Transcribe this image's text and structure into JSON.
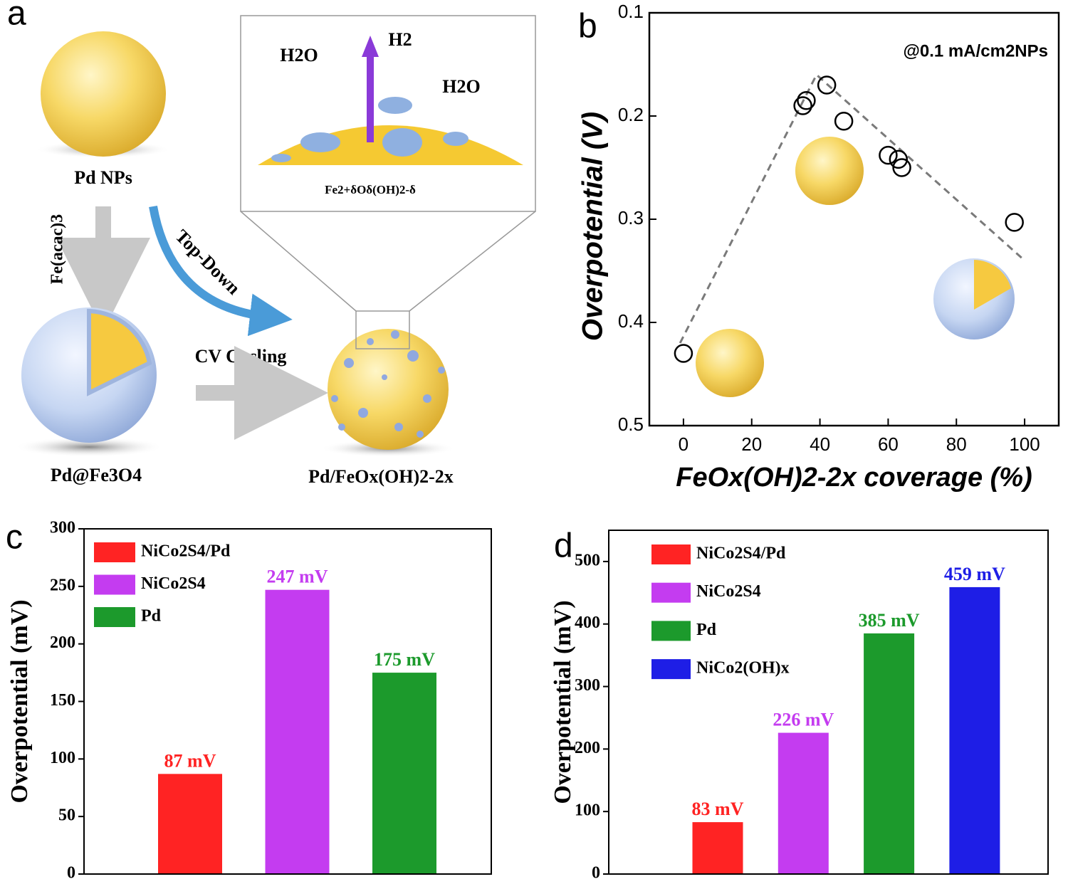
{
  "panel_labels": [
    "a",
    "b",
    "c",
    "d"
  ],
  "diagram": {
    "pd_nps": "Pd NPs",
    "fe_acac": "Fe(acac)3",
    "pd_fe3o4": "Pd@Fe3O4",
    "top_down": "Top-Down",
    "cv_cycling": "CV Cycling",
    "pd_feox": "Pd/FeOx(OH)2-2x",
    "h2o_left": "H2O",
    "h2": "H2",
    "h2o_right": "H2O",
    "fe_species": "Fe2+δOδ(OH)2-δ"
  },
  "chart_data": [
    {
      "type": "scatter",
      "annotation": "@0.1 mA/cm2NPs",
      "x_label": "FeOx(OH)2-2x coverage (%)",
      "y_label": "Overpotential (V)",
      "x": [
        0,
        35,
        36,
        42,
        47,
        60,
        63,
        64,
        97
      ],
      "values": [
        0.43,
        0.19,
        0.185,
        0.17,
        0.205,
        0.238,
        0.242,
        0.25,
        0.303
      ],
      "trend": {
        "x": [
          -1,
          39,
          100
        ],
        "values": [
          0.42,
          0.16,
          0.34
        ],
        "color": "#7a7a7a"
      },
      "color": "#000000",
      "xlim": [
        -10,
        110
      ],
      "xticks": [
        0,
        20,
        40,
        60,
        80,
        100
      ],
      "ylim": [
        0.1,
        0.5
      ],
      "y_inverted": true,
      "yticks": [
        0.1,
        0.2,
        0.3,
        0.4,
        0.5
      ]
    },
    {
      "type": "bar",
      "y_label": "Overpotential (mV)",
      "categories": [
        "NiCo2S4/Pd",
        "NiCo2S4",
        "Pd"
      ],
      "values": [
        87,
        247,
        175
      ],
      "value_labels": [
        "87 mV",
        "247 mV",
        "175 mV"
      ],
      "colors": [
        "#ff2323",
        "#c43cf0",
        "#1c9a2c"
      ],
      "ylim": [
        0,
        300
      ],
      "yticks": [
        0,
        50,
        100,
        150,
        200,
        250,
        300
      ]
    },
    {
      "type": "bar",
      "y_label": "Overpotential (mV)",
      "categories": [
        "NiCo2S4/Pd",
        "NiCo2S4",
        "Pd",
        "NiCo2(OH)x"
      ],
      "values": [
        83,
        226,
        385,
        459
      ],
      "value_labels": [
        "83 mV",
        "226 mV",
        "385 mV",
        "459 mV"
      ],
      "colors": [
        "#ff2323",
        "#c43cf0",
        "#1c9a2c",
        "#1e1ee6"
      ],
      "ylim": [
        0,
        550
      ],
      "yticks": [
        0,
        100,
        200,
        300,
        400,
        500
      ]
    }
  ]
}
